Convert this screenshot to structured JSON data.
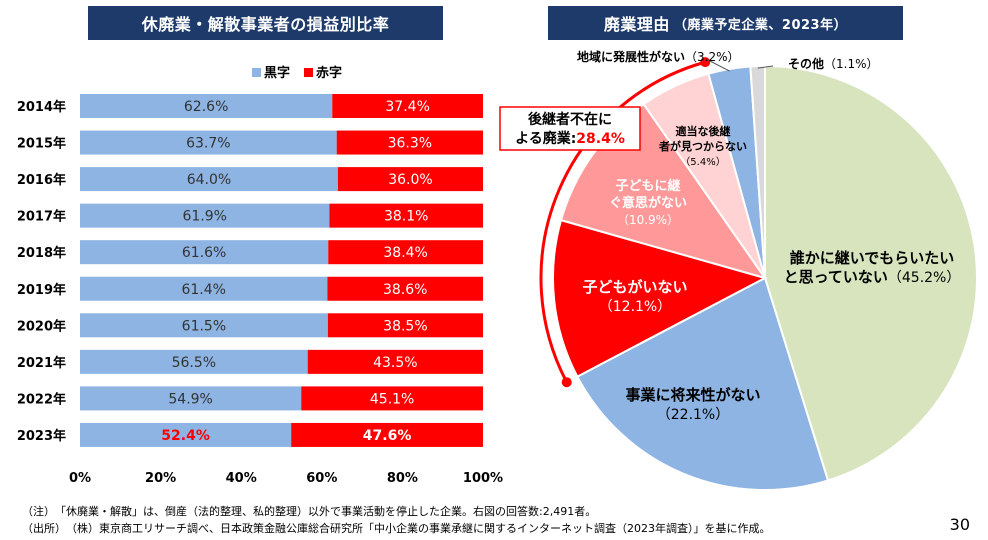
{
  "left_chart_title": "休廃業・解散事業者の損益別比率",
  "right_chart_title": "廃業理由",
  "right_chart_subtitle": "（廃業予定企業、2023年）",
  "chart_data": [
    {
      "type": "bar",
      "orientation": "horizontal-stacked-100",
      "title": "休廃業・解散事業者の損益別比率",
      "categories": [
        "2014年",
        "2015年",
        "2016年",
        "2017年",
        "2018年",
        "2019年",
        "2020年",
        "2021年",
        "2022年",
        "2023年"
      ],
      "series": [
        {
          "name": "黒字",
          "color": "#8eb4e3",
          "values": [
            62.6,
            63.7,
            64.0,
            61.9,
            61.6,
            61.4,
            61.5,
            56.5,
            54.9,
            52.4
          ]
        },
        {
          "name": "赤字",
          "color": "#ff0000",
          "values": [
            37.4,
            36.3,
            36.0,
            38.1,
            38.4,
            38.6,
            38.5,
            43.5,
            45.1,
            47.6
          ]
        }
      ],
      "value_labels": {
        "black": [
          "62.6%",
          "63.7%",
          "64.0%",
          "61.9%",
          "61.6%",
          "61.4%",
          "61.5%",
          "56.5%",
          "54.9%",
          "52.4%"
        ],
        "red": [
          "37.4%",
          "36.3%",
          "36.0%",
          "38.1%",
          "38.4%",
          "38.6%",
          "38.5%",
          "43.5%",
          "45.1%",
          "47.6%"
        ]
      },
      "xlim": [
        0,
        100
      ],
      "xticks": [
        "0%",
        "20%",
        "40%",
        "60%",
        "80%",
        "100%"
      ],
      "grid": false,
      "legend": "top-right"
    },
    {
      "type": "pie",
      "title": "廃業理由",
      "subtitle": "（廃業予定企業、2023年）",
      "slices": [
        {
          "label": "誰かに継いでもらいたいと思っていない",
          "value": 45.2,
          "pct": "（45.2%）",
          "color": "#d7e4bd"
        },
        {
          "label": "事業に将来性がない",
          "value": 22.1,
          "pct": "（22.1%）",
          "color": "#8eb4e3"
        },
        {
          "label": "子どもがいない",
          "value": 12.1,
          "pct": "（12.1%）",
          "color": "#ff0000"
        },
        {
          "label": "子どもに継ぐ意思がない",
          "value": 10.9,
          "pct": "（10.9%）",
          "color": "#ff9999"
        },
        {
          "label": "適当な後継者が見つからない",
          "value": 5.4,
          "pct": "（5.4%）",
          "color": "#ffd3d3"
        },
        {
          "label": "地域に発展性がない",
          "value": 3.2,
          "pct": "（3.2%）",
          "color": "#8eb4e3"
        },
        {
          "label": "その他",
          "value": 1.1,
          "pct": "（1.1%）",
          "color": "#d9d9d9"
        }
      ],
      "callout": {
        "text1": "後継者不在に",
        "text2": "よる廃業:",
        "value": "28.4%"
      }
    }
  ],
  "notes": {
    "note1": "（注）　「休廃業・解散」は、倒産（法的整理、私的整理）以外で事業活動を停止した企業。右図の回答数:2,491者。",
    "note2": "（出所）　（株）東京商工リサーチ調べ、日本政策金融公庫総合研究所「中小企業の事業承継に関するインターネット調査（2023年調査）」を基に作成。"
  },
  "page_number": "30"
}
